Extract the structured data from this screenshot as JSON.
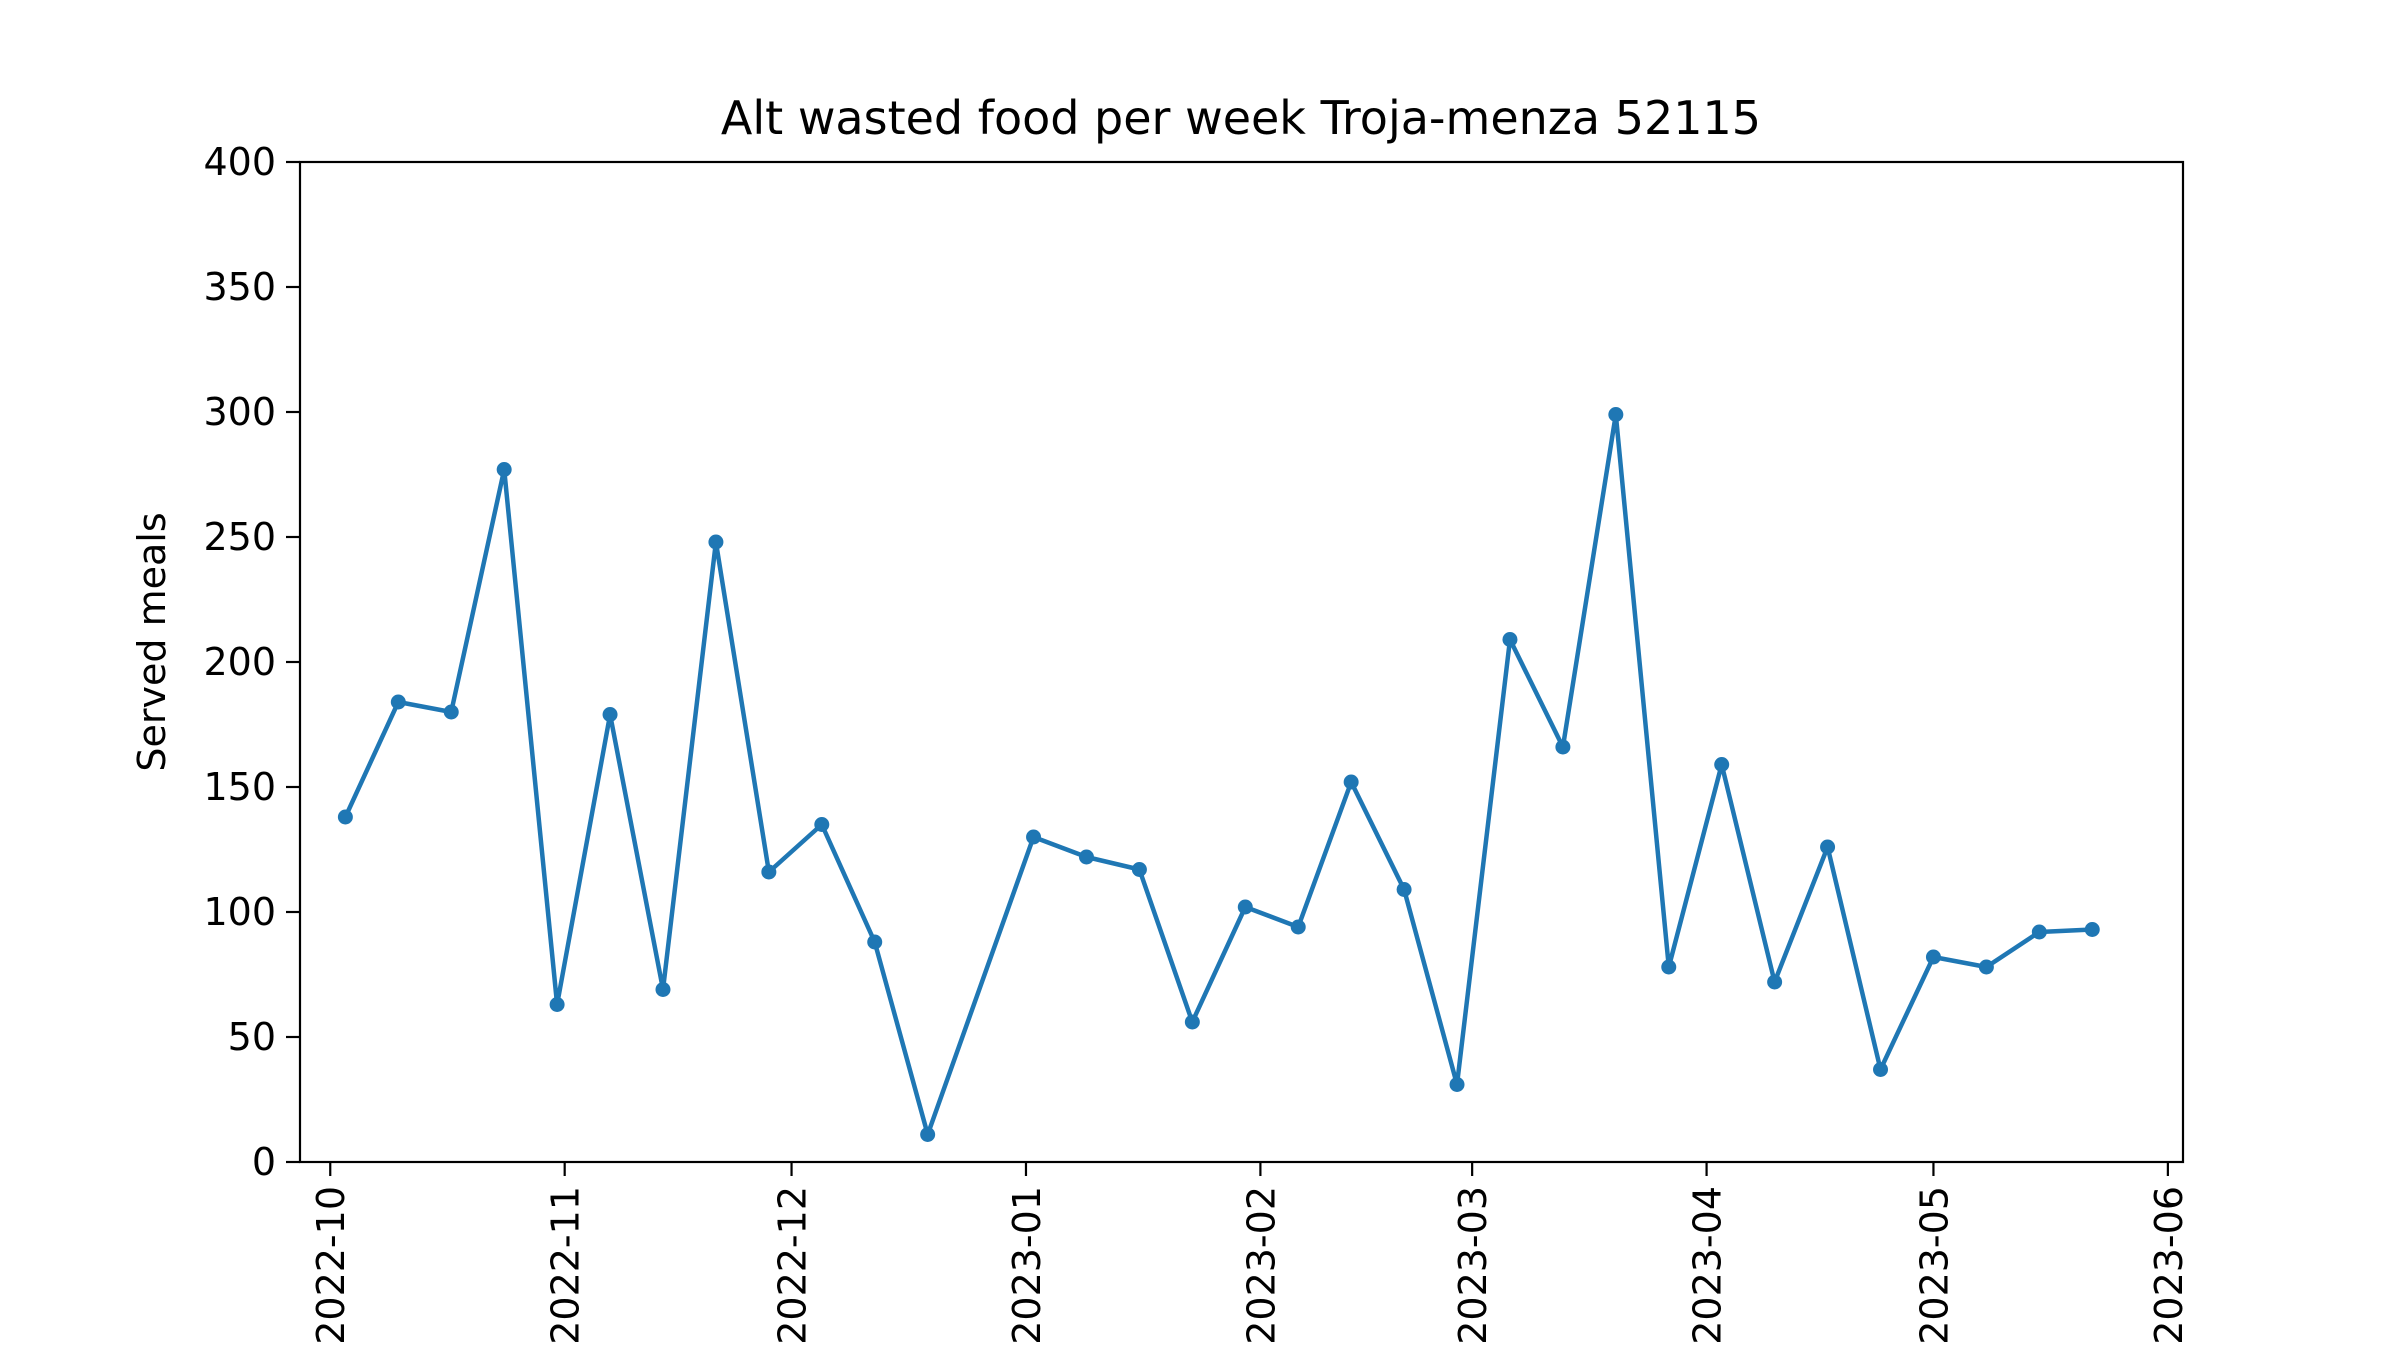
{
  "chart_data": {
    "type": "line",
    "title": "Alt wasted food per week Troja-menza 52115",
    "xlabel": "",
    "ylabel": "Served meals",
    "ylim": [
      0,
      400
    ],
    "xlim": [
      "2022-09-27",
      "2023-06-03"
    ],
    "yticks": [
      0,
      50,
      100,
      150,
      200,
      250,
      300,
      350,
      400
    ],
    "xticks": [
      "2022-10",
      "2022-11",
      "2022-12",
      "2023-01",
      "2023-02",
      "2023-03",
      "2023-04",
      "2023-05",
      "2023-06"
    ],
    "xtick_dates": [
      "2022-10-01",
      "2022-11-01",
      "2022-12-01",
      "2023-01-01",
      "2023-02-01",
      "2023-03-01",
      "2023-04-01",
      "2023-05-01",
      "2023-06-01"
    ],
    "grid": false,
    "color": "#1f77b4",
    "marker": "circle",
    "series": [
      {
        "x": [
          "2022-10-03",
          "2022-10-10",
          "2022-10-17",
          "2022-10-24",
          "2022-10-31",
          "2022-11-07",
          "2022-11-14",
          "2022-11-21",
          "2022-11-28",
          "2022-12-05",
          "2022-12-12",
          "2022-12-19",
          "2023-01-02",
          "2023-01-09",
          "2023-01-16",
          "2023-01-23",
          "2023-01-30",
          "2023-02-06",
          "2023-02-13",
          "2023-02-20",
          "2023-02-27",
          "2023-03-06",
          "2023-03-13",
          "2023-03-20",
          "2023-03-27",
          "2023-04-03",
          "2023-04-10",
          "2023-04-17",
          "2023-04-24",
          "2023-05-01",
          "2023-05-08",
          "2023-05-15",
          "2023-05-22"
        ],
        "values": [
          138,
          184,
          180,
          277,
          63,
          179,
          69,
          248,
          116,
          135,
          88,
          11,
          130,
          122,
          117,
          56,
          102,
          94,
          152,
          109,
          31,
          209,
          166,
          299,
          78,
          159,
          72,
          126,
          37,
          82,
          78,
          92,
          93
        ]
      }
    ]
  }
}
